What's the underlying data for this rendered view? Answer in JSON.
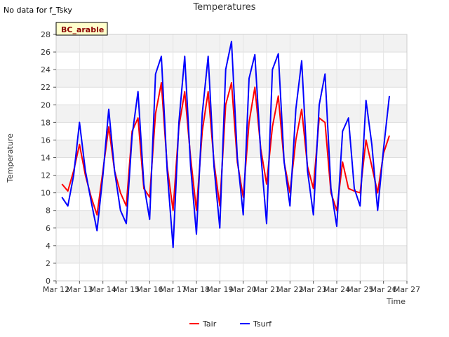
{
  "notice": "No data for f_Tsky",
  "chart_data": {
    "type": "line",
    "title": "Temperatures",
    "xlabel": "Time",
    "ylabel": "Temperature",
    "badge": "BC_arable",
    "ylim": [
      0,
      28
    ],
    "yticks": [
      0,
      2,
      4,
      6,
      8,
      10,
      12,
      14,
      16,
      18,
      20,
      22,
      24,
      26,
      28
    ],
    "xlim": [
      12,
      27
    ],
    "xticks": [
      12,
      13,
      14,
      15,
      16,
      17,
      18,
      19,
      20,
      21,
      22,
      23,
      24,
      25,
      26,
      27
    ],
    "xtick_labels": [
      "Mar 12",
      "Mar 13",
      "Mar 14",
      "Mar 15",
      "Mar 16",
      "Mar 17",
      "Mar 18",
      "Mar 19",
      "Mar 20",
      "Mar 21",
      "Mar 22",
      "Mar 23",
      "Mar 24",
      "Mar 25",
      "Mar 26",
      "Mar 27"
    ],
    "grid": true,
    "legend_position": "bottom-center",
    "series": [
      {
        "name": "Tair",
        "color": "#ff0000",
        "x": [
          12.25,
          12.5,
          12.75,
          13.0,
          13.25,
          13.5,
          13.75,
          14.0,
          14.25,
          14.5,
          14.75,
          15.0,
          15.25,
          15.5,
          15.75,
          16.0,
          16.25,
          16.5,
          16.75,
          17.0,
          17.25,
          17.5,
          17.75,
          18.0,
          18.25,
          18.5,
          18.75,
          19.0,
          19.25,
          19.5,
          19.75,
          20.0,
          20.25,
          20.5,
          20.75,
          21.0,
          21.25,
          21.5,
          21.75,
          22.0,
          22.25,
          22.5,
          22.75,
          23.0,
          23.25,
          23.5,
          23.75,
          24.0,
          24.25,
          24.5,
          24.75,
          25.0,
          25.25,
          25.5,
          25.75,
          26.0,
          26.25
        ],
        "y": [
          11.0,
          10.2,
          12.5,
          15.5,
          12.0,
          9.5,
          7.5,
          12.5,
          17.5,
          12.5,
          10.0,
          8.5,
          17.0,
          18.5,
          10.5,
          9.5,
          19.0,
          22.5,
          13.0,
          8.0,
          17.5,
          21.5,
          14.0,
          8.0,
          17.0,
          21.5,
          13.5,
          8.5,
          20.0,
          22.5,
          13.5,
          9.5,
          18.0,
          22.0,
          15.0,
          11.0,
          17.5,
          21.0,
          13.5,
          10.0,
          16.0,
          19.5,
          13.0,
          10.5,
          18.5,
          18.0,
          10.0,
          8.0,
          13.5,
          10.5,
          10.2,
          10.0,
          16.0,
          13.0,
          10.0,
          14.5,
          16.5
        ]
      },
      {
        "name": "Tsurf",
        "color": "#0000ff",
        "x": [
          12.25,
          12.5,
          12.75,
          13.0,
          13.25,
          13.5,
          13.75,
          14.0,
          14.25,
          14.5,
          14.75,
          15.0,
          15.25,
          15.5,
          15.75,
          16.0,
          16.25,
          16.5,
          16.75,
          17.0,
          17.25,
          17.5,
          17.75,
          18.0,
          18.25,
          18.5,
          18.75,
          19.0,
          19.25,
          19.5,
          19.75,
          20.0,
          20.25,
          20.5,
          20.75,
          21.0,
          21.25,
          21.5,
          21.75,
          22.0,
          22.25,
          22.5,
          22.75,
          23.0,
          23.25,
          23.5,
          23.75,
          24.0,
          24.25,
          24.5,
          24.75,
          25.0,
          25.25,
          25.5,
          25.75,
          26.0,
          26.25
        ],
        "y": [
          9.5,
          8.5,
          12.0,
          18.0,
          12.5,
          9.0,
          5.7,
          12.0,
          19.5,
          12.5,
          8.0,
          6.5,
          16.5,
          21.5,
          11.0,
          7.0,
          23.5,
          25.5,
          12.5,
          3.8,
          18.0,
          25.5,
          13.0,
          5.3,
          19.0,
          25.5,
          13.0,
          6.0,
          24.0,
          27.2,
          14.0,
          7.5,
          23.0,
          25.7,
          14.5,
          6.5,
          24.0,
          25.8,
          13.5,
          8.5,
          19.5,
          25.0,
          12.5,
          7.5,
          20.0,
          23.5,
          10.5,
          6.2,
          17.0,
          18.5,
          10.5,
          8.5,
          20.5,
          15.5,
          8.0,
          15.0,
          21.0
        ]
      }
    ]
  }
}
